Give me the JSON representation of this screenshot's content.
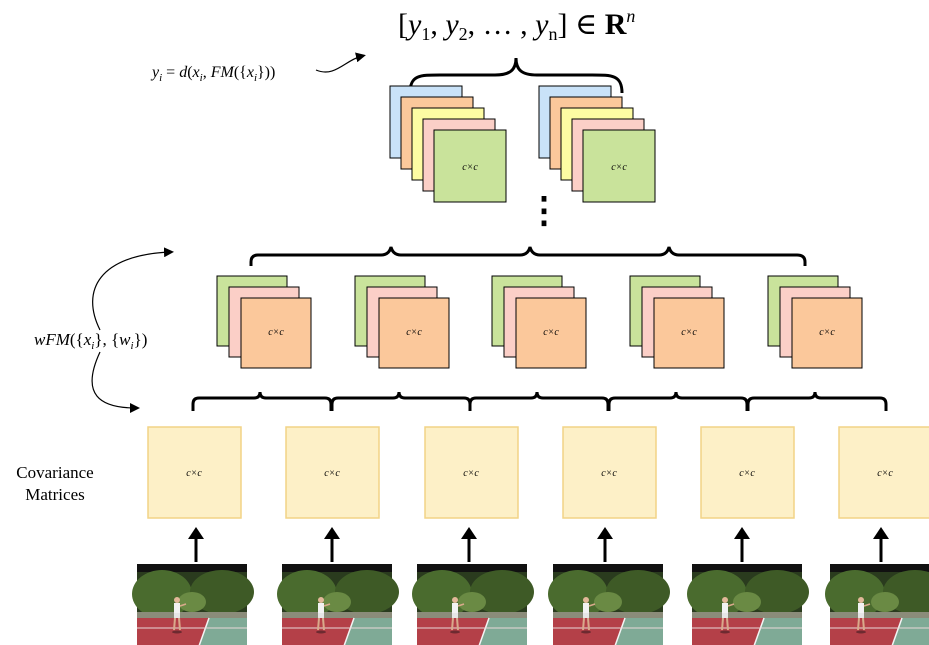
{
  "result_vector": {
    "bracket_open": "[",
    "y1": "y",
    "y1_sub": "1",
    "y2": "y",
    "y2_sub": "2",
    "dots": "… ,",
    "yn": "y",
    "yn_sub": "n",
    "bracket_close": "] ∈",
    "space": "R",
    "space_sup": "n"
  },
  "distance_formula": "y i = d(x i , FM({x i }))",
  "weighted_mean_formula": "wFM({x i }, {w i })",
  "matrix_cell_label": "c×c",
  "covariance_caption": [
    "Covariance",
    "Matrices"
  ],
  "colors": {
    "blue": "#c9e2f8",
    "orange": "#fbc89b",
    "yellow": "#fdfca3",
    "pink": "#fbcfc7",
    "green": "#c9e39b",
    "cov_fill": "#fdf0c7",
    "cov_stroke": "#f2d386",
    "court": "#b44048",
    "court_side": "#7faa96",
    "trees": "#2a3b1e"
  },
  "frames": 6,
  "wfm_groups": 5,
  "top_stacks": 2,
  "ellipsis": "⋮"
}
